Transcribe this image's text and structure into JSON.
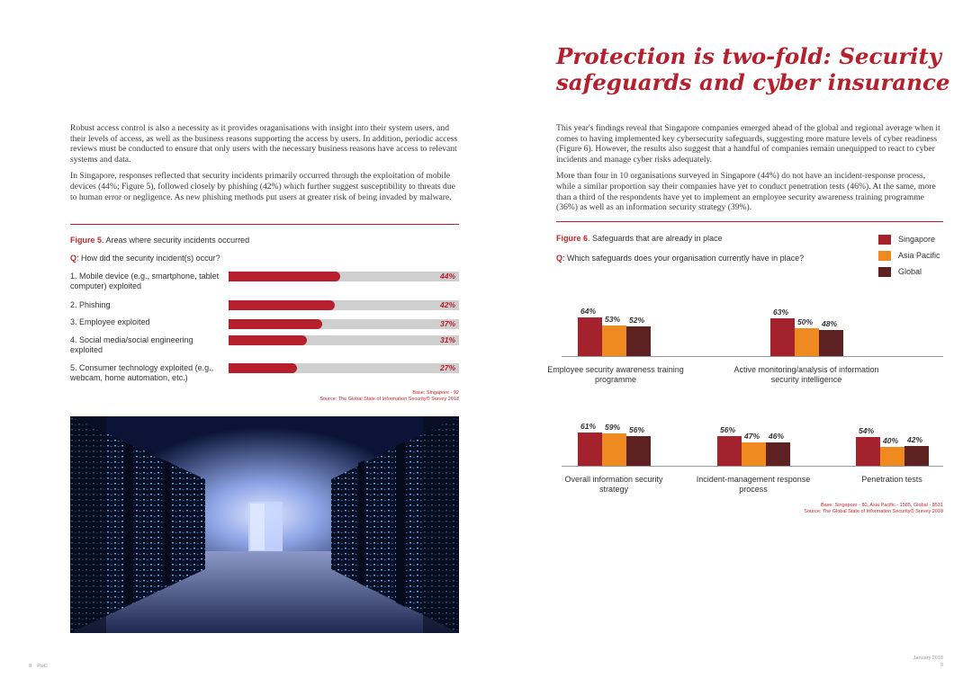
{
  "title": {
    "line1": "Protection is two-fold: Security",
    "line2": "safeguards and cyber insurance"
  },
  "left_text": {
    "p1": "Robust access control is also a necessity as it provides oraganisations with insight into their system users, and their levels of access, as well as the business reasons supporting the access by users. In addition, periodic access reviews must be conducted to ensure that only users with the necessary business reasons have access to relevant systems and data.",
    "p2": "In Singapore, responses reflected that security incidents primarily occurred through the exploitation of mobile devices (44%; Figure 5), followed closely by phishing (42%) which further suggest susceptibility to threats due to human error or negligence. As new phishing methods put users at greater risk of being invaded by malware."
  },
  "right_text": {
    "p1": "This year's findings reveal that Singapore companies emerged ahead of the global and regional average when it comes to having implemented key cybersecurity safeguards, suggesting more mature levels of cyber readiness (Figure 6). However, the results also suggest that a handful of companies remain unequipped to react to cyber incidents and manage cyber risks adequately.",
    "p2": "More than four in 10 organisations surveyed in Singapore (44%) do not have an incident-response process, while a similar proportion say their companies have yet to conduct penetration tests (46%). At the same, more than a third of the respondents have yet to implement an employee security awareness training programme (36%) as well as an information security strategy (39%)."
  },
  "fig5": {
    "label": "Figure 5",
    "title": ". Areas where security incidents occurred",
    "q_label": "Q",
    "question": ": How did the security incident(s) occur?",
    "base": "Base: Singapore - 92",
    "source": "Source: The Global State of Information Security® Survey 2018"
  },
  "fig6": {
    "label": "Figure 6",
    "title": ". Safeguards that are already in place",
    "q_label": "Q",
    "question": ": Which safeguards does your organisation currently have in place?",
    "base": "Base: Singapore - 80, Asia Pacific - 1585, Global - 8531",
    "source": "Source: The Global State of Information Security® Survey 2018"
  },
  "legend": [
    "Singapore",
    "Asia Pacific",
    "Global"
  ],
  "colors": {
    "singapore": "#a3222b",
    "asia_pacific": "#ef8a21",
    "global": "#5c2120",
    "accent": "#b5202c"
  },
  "chart_data": [
    {
      "type": "bar",
      "orientation": "horizontal",
      "title": "Figure 5. Areas where security incidents occurred",
      "categories": [
        "1. Mobile device (e.g., smartphone, tablet computer) exploited",
        "2. Phishing",
        "3. Employee exploited",
        "4. Social media/social engineering exploited",
        "5. Consumer technology exploited (e.g., webcam, home automation, etc.)"
      ],
      "values": [
        44,
        42,
        37,
        31,
        27
      ],
      "value_labels": [
        "44%",
        "42%",
        "37%",
        "31%",
        "27%"
      ],
      "xlim": [
        0,
        100
      ]
    },
    {
      "type": "bar",
      "orientation": "vertical",
      "title": "Figure 6. Safeguards that are already in place",
      "categories": [
        "Employee security awareness training programme",
        "Active monitoring/analysis of information security intelligence",
        "Overall information security strategy",
        "Incident-management response process",
        "Penetration tests"
      ],
      "series": [
        {
          "name": "Singapore",
          "values": [
            64,
            63,
            61,
            56,
            54
          ],
          "labels": [
            "64%",
            "63%",
            "61%",
            "56%",
            "54%"
          ]
        },
        {
          "name": "Asia Pacific",
          "values": [
            53,
            50,
            59,
            47,
            40
          ],
          "labels": [
            "53%",
            "50%",
            "59%",
            "47%",
            "40%"
          ]
        },
        {
          "name": "Global",
          "values": [
            52,
            48,
            56,
            46,
            42
          ],
          "labels": [
            "52%",
            "48%",
            "56%",
            "46%",
            "42%"
          ]
        }
      ],
      "ylim": [
        0,
        100
      ]
    }
  ],
  "footer": {
    "page_left": "8",
    "brand": "PwC",
    "date": "January 2018",
    "page_right": "9"
  }
}
